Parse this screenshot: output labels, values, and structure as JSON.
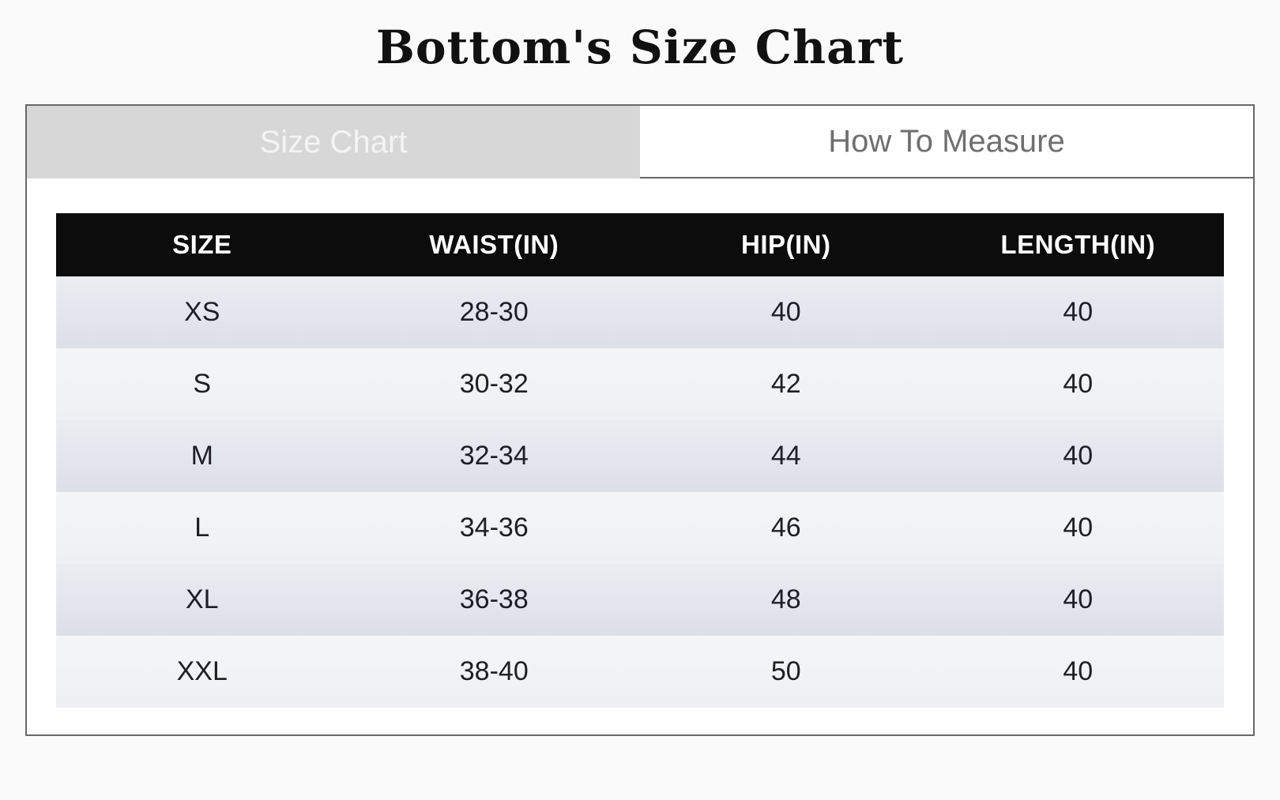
{
  "page": {
    "title": "Bottom's Size Chart"
  },
  "tabs": [
    {
      "label": "Size Chart",
      "active": true
    },
    {
      "label": "How To Measure",
      "active": false
    }
  ],
  "chart_data": {
    "type": "table",
    "title": "Bottom's Size Chart",
    "columns": [
      "SIZE",
      "WAIST(IN)",
      "HIP(IN)",
      "LENGTH(IN)"
    ],
    "rows": [
      [
        "XS",
        "28-30",
        "40",
        "40"
      ],
      [
        "S",
        "30-32",
        "42",
        "40"
      ],
      [
        "M",
        "32-34",
        "44",
        "40"
      ],
      [
        "L",
        "34-36",
        "46",
        "40"
      ],
      [
        "XL",
        "36-38",
        "48",
        "40"
      ],
      [
        "XXL",
        "38-40",
        "50",
        "40"
      ]
    ]
  },
  "colors": {
    "page_background": "#fafafa",
    "panel_border": "#686868",
    "active_tab_background": "#d7d7d7",
    "active_tab_text": "#f4f4f4",
    "inactive_tab_text": "#6f6f6f",
    "header_background": "#0c0c0c",
    "header_text": "#ffffff",
    "row_dark": "#e3e6ec",
    "row_light": "#f0f1f4",
    "cell_text": "#1e1e24"
  }
}
